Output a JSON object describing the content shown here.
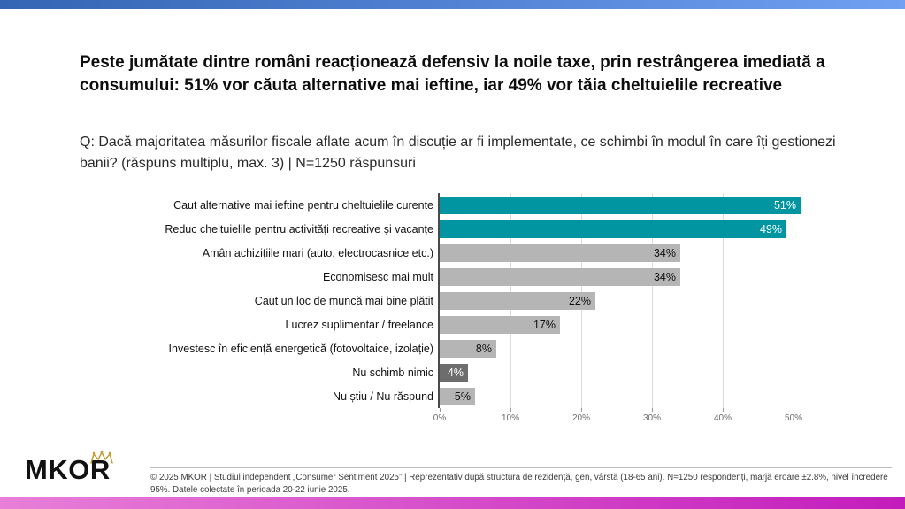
{
  "theme": {
    "top_bar_gradient": [
      "#3464b4",
      "#6fa0f2"
    ],
    "bottom_bar_gradient": [
      "#e87fd8",
      "#c31cbc"
    ],
    "highlight_color": "#0095a0",
    "neutral_bar_color": "#b5b5b5",
    "dark_bar_color": "#6d6d6d",
    "crown_color": "#c59a2f"
  },
  "header": {
    "title": "Peste jumătate dintre români reacționează defensiv la noile taxe, prin restrângerea imediată a consumului: 51% vor căuta alternative mai ieftine, iar 49% vor tăia cheltuielile recreative",
    "question": "Q: Dacă majoritatea măsurilor fiscale aflate acum în discuție ar fi implementate, ce schimbi în modul în care îți gestionezi banii? (răspuns multiplu, max. 3) | N=1250 răspunsuri"
  },
  "chart_data": {
    "type": "bar",
    "orientation": "horizontal",
    "categories": [
      "Caut alternative mai ieftine pentru cheltuielile curente",
      "Reduc cheltuielile pentru activități recreative și vacanțe",
      "Amân achizițiile mari (auto, electrocasnice etc.)",
      "Economisesc mai mult",
      "Caut un loc de muncă mai bine plătit",
      "Lucrez suplimentar / freelance",
      "Investesc în eficiență energetică (fotovoltaice, izolație)",
      "Nu schimb nimic",
      "Nu știu / Nu răspund"
    ],
    "values": [
      51,
      49,
      34,
      34,
      22,
      17,
      8,
      4,
      5
    ],
    "value_labels": [
      "51%",
      "49%",
      "34%",
      "34%",
      "22%",
      "17%",
      "8%",
      "4%",
      "5%"
    ],
    "bar_colors": [
      "#0095a0",
      "#0095a0",
      "#b5b5b5",
      "#b5b5b5",
      "#b5b5b5",
      "#b5b5b5",
      "#b5b5b5",
      "#6d6d6d",
      "#b5b5b5"
    ],
    "value_label_colors": [
      "#ffffff",
      "#ffffff",
      "#111111",
      "#111111",
      "#111111",
      "#111111",
      "#111111",
      "#ffffff",
      "#111111"
    ],
    "title": "",
    "xlabel": "",
    "ylabel": "",
    "xlim": [
      0,
      51.5
    ],
    "x_ticks": [
      "0%",
      "10%",
      "20%",
      "30%",
      "40%",
      "50%"
    ],
    "grid": true,
    "legend": false
  },
  "footer": {
    "logo_text": "MKOR",
    "note": "© 2025 MKOR | Studiul independent „Consumer Sentiment 2025” | Reprezentativ după structura de rezidență, gen, vârstă (18-65 ani). N=1250 respondenți, marjă eroare ±2.8%, nivel încredere 95%. Datele colectate în perioada 20-22 iunie 2025."
  }
}
